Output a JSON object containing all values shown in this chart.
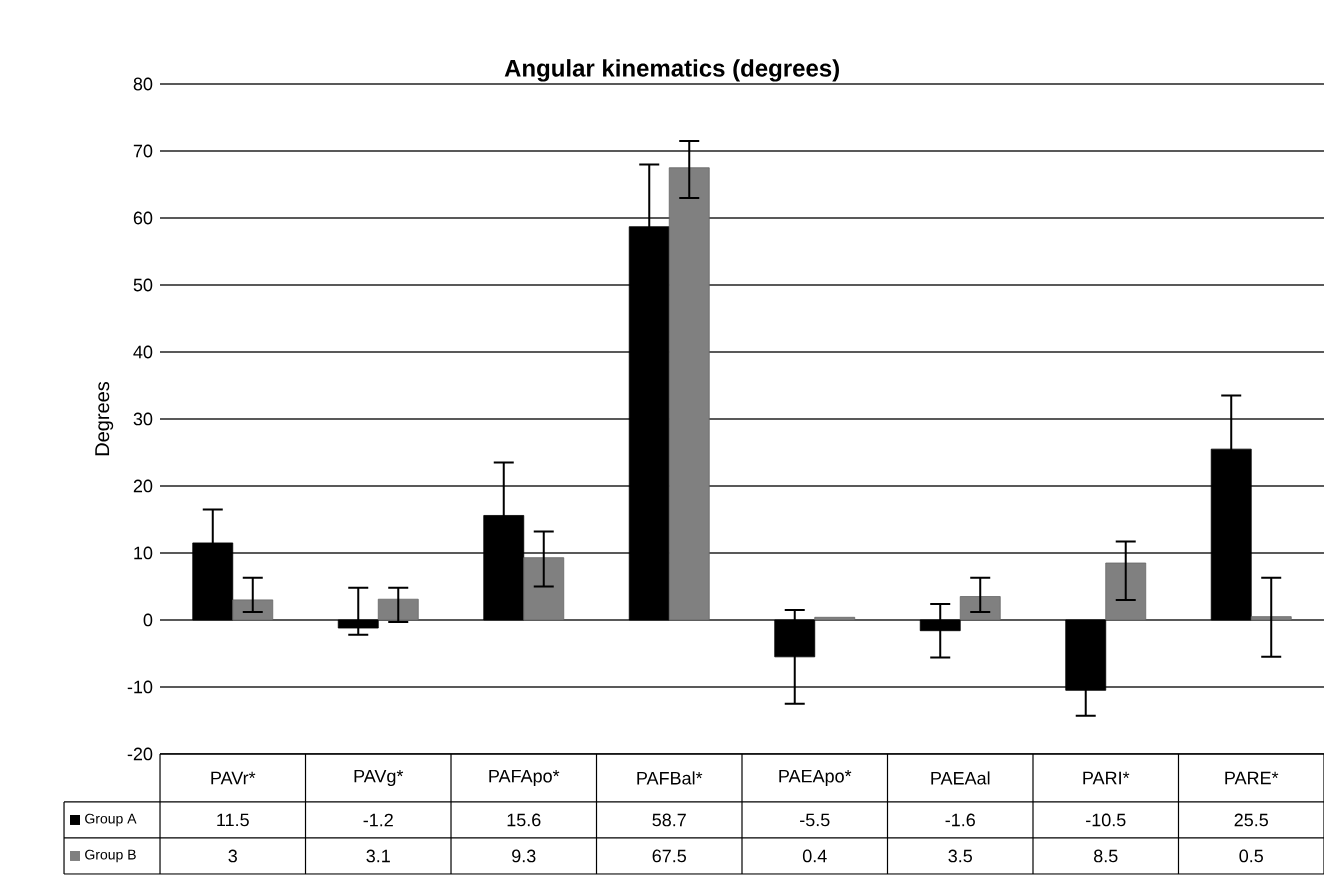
{
  "chart_data": {
    "type": "bar",
    "title": "Angular kinematics (degrees)",
    "ylabel": "Degrees",
    "categories": [
      "PAVr*",
      "PAVg*",
      "PAFApo*",
      "PAFBal*",
      "PAEApo*",
      "PAEAal",
      "PARI*",
      "PARE*"
    ],
    "series": [
      {
        "name": "Group A",
        "color": "#000000",
        "values": [
          11.5,
          -1.2,
          15.6,
          58.7,
          -5.5,
          -1.6,
          -10.5,
          25.5
        ],
        "errors": [
          5,
          [
            -2.2,
            4.8
          ],
          7.9,
          9.3,
          7,
          4,
          3.8,
          8
        ]
      },
      {
        "name": "Group B",
        "color": "#808080",
        "values": [
          3,
          3.1,
          9.3,
          67.5,
          0.4,
          3.5,
          8.5,
          0.5
        ],
        "errors": [
          [
            1.2,
            6.3
          ],
          [
            -0.3,
            4.8
          ],
          [
            5,
            13.2
          ],
          [
            63,
            71.5
          ],
          null,
          [
            1.2,
            6.3
          ],
          [
            3,
            11.7
          ],
          [
            -5.5,
            6.3
          ]
        ]
      }
    ],
    "ylim": [
      -20,
      80
    ],
    "yticks": [
      -20,
      -10,
      0,
      10,
      20,
      30,
      40,
      50,
      60,
      70,
      80
    ],
    "grid": "y",
    "legend": "bottom left",
    "data_labels": true
  }
}
